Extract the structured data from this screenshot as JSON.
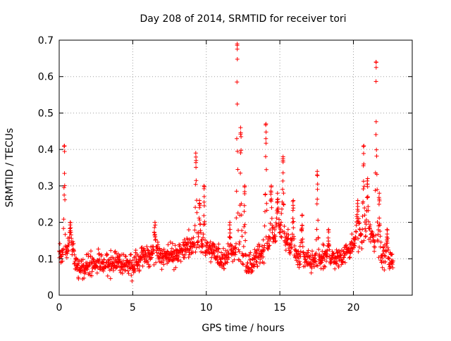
{
  "chart_data": {
    "type": "scatter",
    "title": "Day 208 of 2014, SRMTID for receiver tori",
    "xlabel": "GPS time / hours",
    "ylabel": "SRMTID / TECUs",
    "xlim": [
      0,
      24
    ],
    "ylim": [
      0,
      0.7
    ],
    "xticks": [
      0,
      5,
      10,
      15,
      20
    ],
    "xtick_labels": [
      "0",
      "5",
      "10",
      "15",
      "20"
    ],
    "yticks": [
      0,
      0.1,
      0.2,
      0.3,
      0.4,
      0.5,
      0.6,
      0.7
    ],
    "ytick_labels": [
      "0",
      "0.1",
      "0.2",
      "0.3",
      "0.4",
      "0.5",
      "0.6",
      "0.7"
    ],
    "grid": true,
    "marker": "plus",
    "marker_color": "#ff0000",
    "baseline": [
      {
        "t": 0.0,
        "y": 0.1
      },
      {
        "t": 0.5,
        "y": 0.12
      },
      {
        "t": 0.8,
        "y": 0.15
      },
      {
        "t": 1.2,
        "y": 0.08
      },
      {
        "t": 2.0,
        "y": 0.08
      },
      {
        "t": 3.0,
        "y": 0.09
      },
      {
        "t": 4.0,
        "y": 0.09
      },
      {
        "t": 5.0,
        "y": 0.08
      },
      {
        "t": 6.0,
        "y": 0.11
      },
      {
        "t": 7.0,
        "y": 0.11
      },
      {
        "t": 8.0,
        "y": 0.11
      },
      {
        "t": 9.0,
        "y": 0.14
      },
      {
        "t": 10.0,
        "y": 0.13
      },
      {
        "t": 11.0,
        "y": 0.1
      },
      {
        "t": 12.0,
        "y": 0.12
      },
      {
        "t": 13.0,
        "y": 0.08
      },
      {
        "t": 14.0,
        "y": 0.13
      },
      {
        "t": 15.0,
        "y": 0.19
      },
      {
        "t": 16.0,
        "y": 0.11
      },
      {
        "t": 17.0,
        "y": 0.09
      },
      {
        "t": 18.0,
        "y": 0.1
      },
      {
        "t": 19.0,
        "y": 0.1
      },
      {
        "t": 20.0,
        "y": 0.14
      },
      {
        "t": 21.0,
        "y": 0.18
      },
      {
        "t": 22.0,
        "y": 0.11
      },
      {
        "t": 22.7,
        "y": 0.09
      }
    ],
    "noise": 0.03,
    "samples": 1400,
    "t_start": 0.0,
    "t_end": 22.7,
    "spikes": [
      {
        "t": 0.35,
        "width": 0.08,
        "peak": 0.41
      },
      {
        "t": 0.75,
        "width": 0.1,
        "peak": 0.2
      },
      {
        "t": 6.5,
        "width": 0.15,
        "peak": 0.2
      },
      {
        "t": 9.3,
        "width": 0.1,
        "peak": 0.39
      },
      {
        "t": 9.55,
        "width": 0.12,
        "peak": 0.26
      },
      {
        "t": 9.85,
        "width": 0.08,
        "peak": 0.3
      },
      {
        "t": 11.6,
        "width": 0.08,
        "peak": 0.2
      },
      {
        "t": 12.1,
        "width": 0.08,
        "peak": 0.69
      },
      {
        "t": 12.35,
        "width": 0.1,
        "peak": 0.46
      },
      {
        "t": 12.6,
        "width": 0.08,
        "peak": 0.3
      },
      {
        "t": 14.05,
        "width": 0.1,
        "peak": 0.47
      },
      {
        "t": 14.4,
        "width": 0.1,
        "peak": 0.3
      },
      {
        "t": 14.85,
        "width": 0.12,
        "peak": 0.28
      },
      {
        "t": 15.2,
        "width": 0.12,
        "peak": 0.38
      },
      {
        "t": 15.9,
        "width": 0.1,
        "peak": 0.26
      },
      {
        "t": 16.5,
        "width": 0.1,
        "peak": 0.22
      },
      {
        "t": 17.55,
        "width": 0.1,
        "peak": 0.34
      },
      {
        "t": 18.3,
        "width": 0.1,
        "peak": 0.18
      },
      {
        "t": 20.3,
        "width": 0.2,
        "peak": 0.26
      },
      {
        "t": 20.7,
        "width": 0.1,
        "peak": 0.41
      },
      {
        "t": 20.95,
        "width": 0.1,
        "peak": 0.32
      },
      {
        "t": 21.55,
        "width": 0.1,
        "peak": 0.64
      },
      {
        "t": 21.75,
        "width": 0.1,
        "peak": 0.28
      },
      {
        "t": 22.3,
        "width": 0.1,
        "peak": 0.18
      }
    ]
  }
}
